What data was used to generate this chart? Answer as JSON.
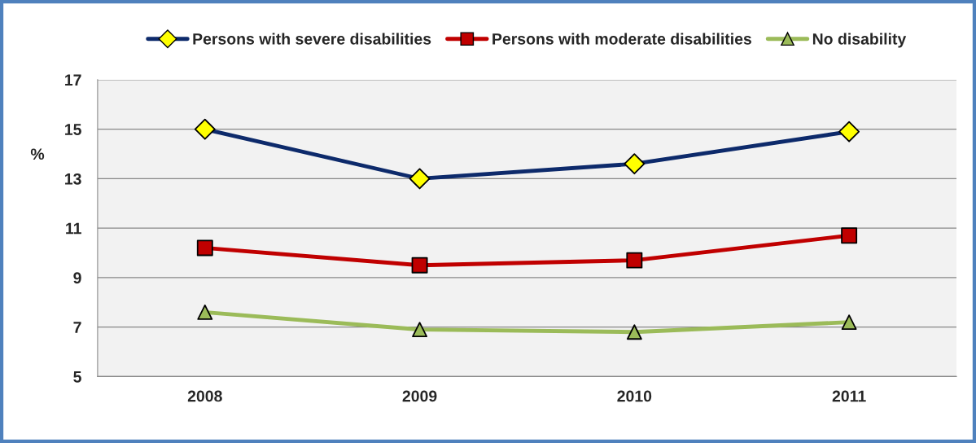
{
  "chart_data": {
    "type": "line",
    "categories": [
      "2008",
      "2009",
      "2010",
      "2011"
    ],
    "ylabel": "%",
    "series": [
      {
        "name": "Persons with severe disabilities",
        "color": "#0d2a6b",
        "marker": "diamond",
        "colors": [
          "#ffff00",
          "#ffff00",
          "#ffff00",
          "#ffff00"
        ],
        "values": [
          15.0,
          13.0,
          13.6,
          14.9
        ]
      },
      {
        "name": "Persons with moderate disabilities",
        "color": "#c00000",
        "marker": "square",
        "values": [
          10.2,
          9.5,
          9.7,
          10.7
        ]
      },
      {
        "name": "No disability",
        "color": "#9bbb59",
        "marker": "triangle",
        "values": [
          7.6,
          6.9,
          6.8,
          7.2
        ]
      }
    ],
    "ylim": [
      5,
      17
    ],
    "yticks": [
      5,
      7,
      9,
      11,
      13,
      15,
      17
    ],
    "grid": "y",
    "legend": "top"
  }
}
